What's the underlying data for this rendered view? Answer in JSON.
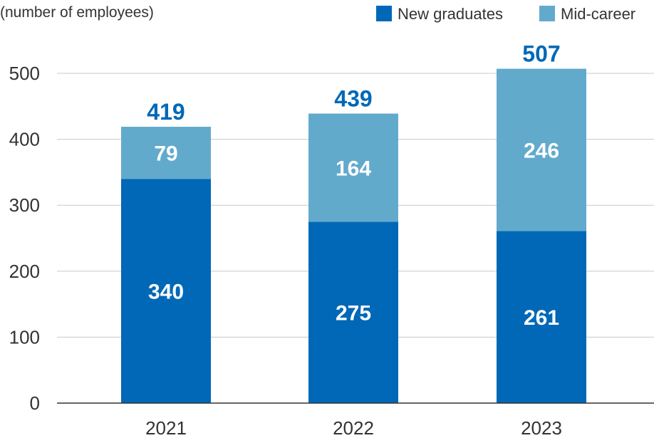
{
  "chart_data": {
    "type": "bar",
    "stacked": true,
    "categories": [
      "2021",
      "2022",
      "2023"
    ],
    "series": [
      {
        "name": "New graduates",
        "values": [
          340,
          275,
          261
        ],
        "color": "#0068b7"
      },
      {
        "name": "Mid-career",
        "values": [
          79,
          164,
          246
        ],
        "color": "#62aacc"
      }
    ],
    "totals": [
      419,
      439,
      507
    ],
    "title": "",
    "xlabel": "",
    "ylabel": "(number of employees)",
    "ylim": [
      0,
      500
    ],
    "yticks": [
      0,
      100,
      200,
      300,
      400,
      500
    ],
    "grid": true,
    "legend_position": "top-right",
    "total_label_color": "#0068b7",
    "segment_label_color": "#ffffff"
  }
}
